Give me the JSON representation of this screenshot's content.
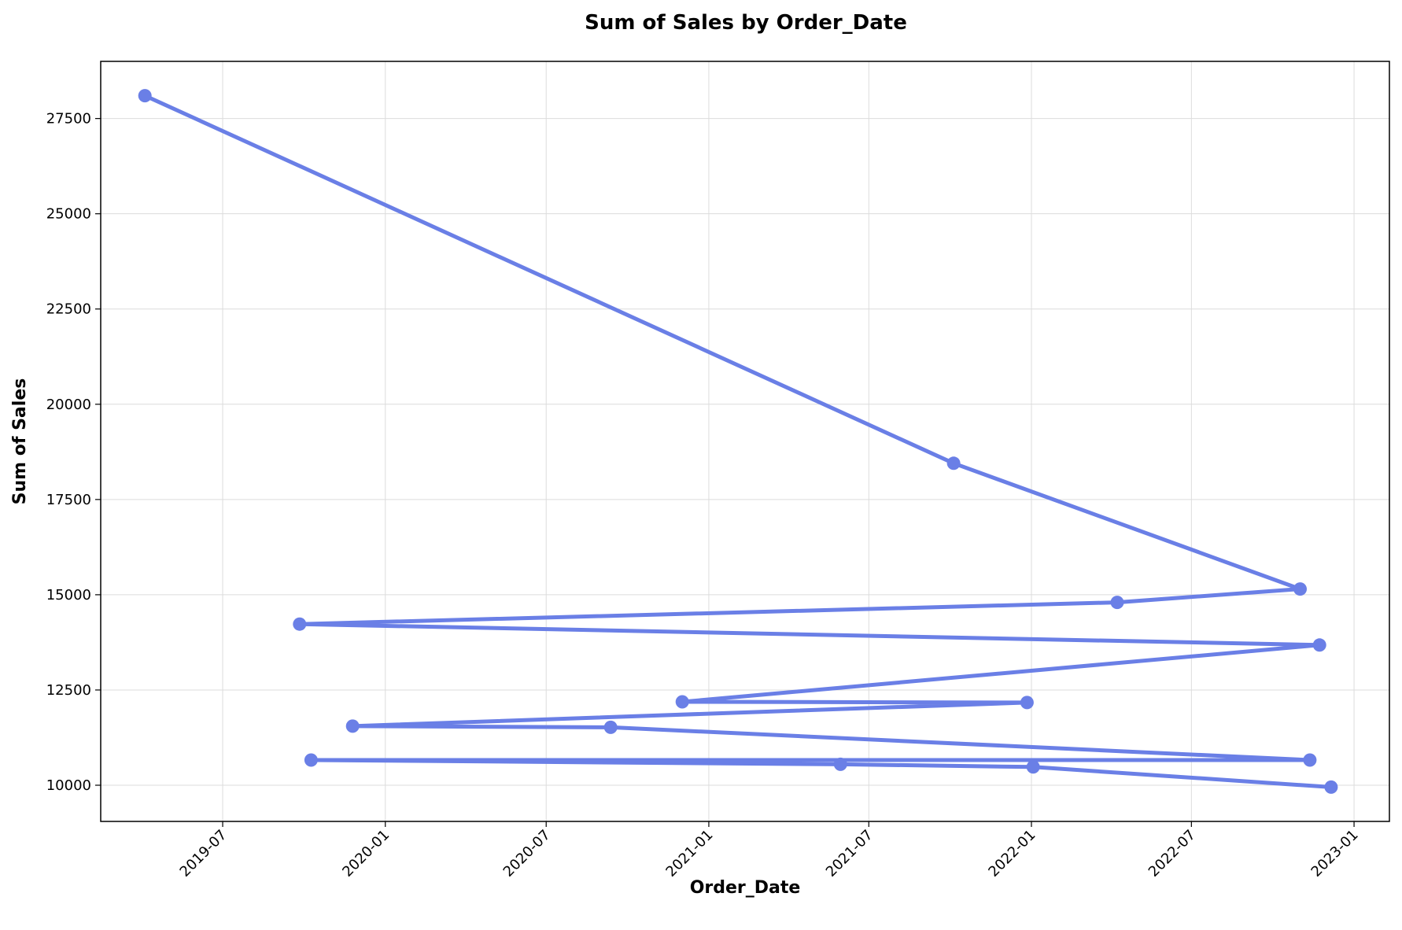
{
  "chart_data": {
    "type": "line",
    "title": "Sum of Sales by Order_Date",
    "xlabel": "Order_Date",
    "ylabel": "Sum of Sales",
    "color": "#6A7FE6",
    "grid": true,
    "xlim": [
      "2019-02-13",
      "2023-02-10"
    ],
    "ylim": [
      9050,
      29000
    ],
    "x_ticks": [
      "2019-07",
      "2020-01",
      "2020-07",
      "2021-01",
      "2021-07",
      "2022-01",
      "2022-07",
      "2023-01"
    ],
    "y_ticks": [
      10000,
      12500,
      15000,
      17500,
      20000,
      22500,
      25000,
      27500
    ],
    "series": [
      {
        "x": [
          "2019-04-04",
          "2021-10-05",
          "2022-11-01",
          "2022-04-08",
          "2019-09-26",
          "2022-11-23",
          "2020-12-02",
          "2021-12-27",
          "2019-11-25",
          "2020-09-12",
          "2022-11-12",
          "2019-10-09",
          "2021-05-30",
          "2022-01-03",
          "2022-12-06"
        ],
        "y": [
          28100,
          18450,
          15150,
          14800,
          14230,
          13680,
          12190,
          12170,
          11550,
          11520,
          10660,
          10660,
          10550,
          10480,
          9950
        ]
      }
    ]
  }
}
